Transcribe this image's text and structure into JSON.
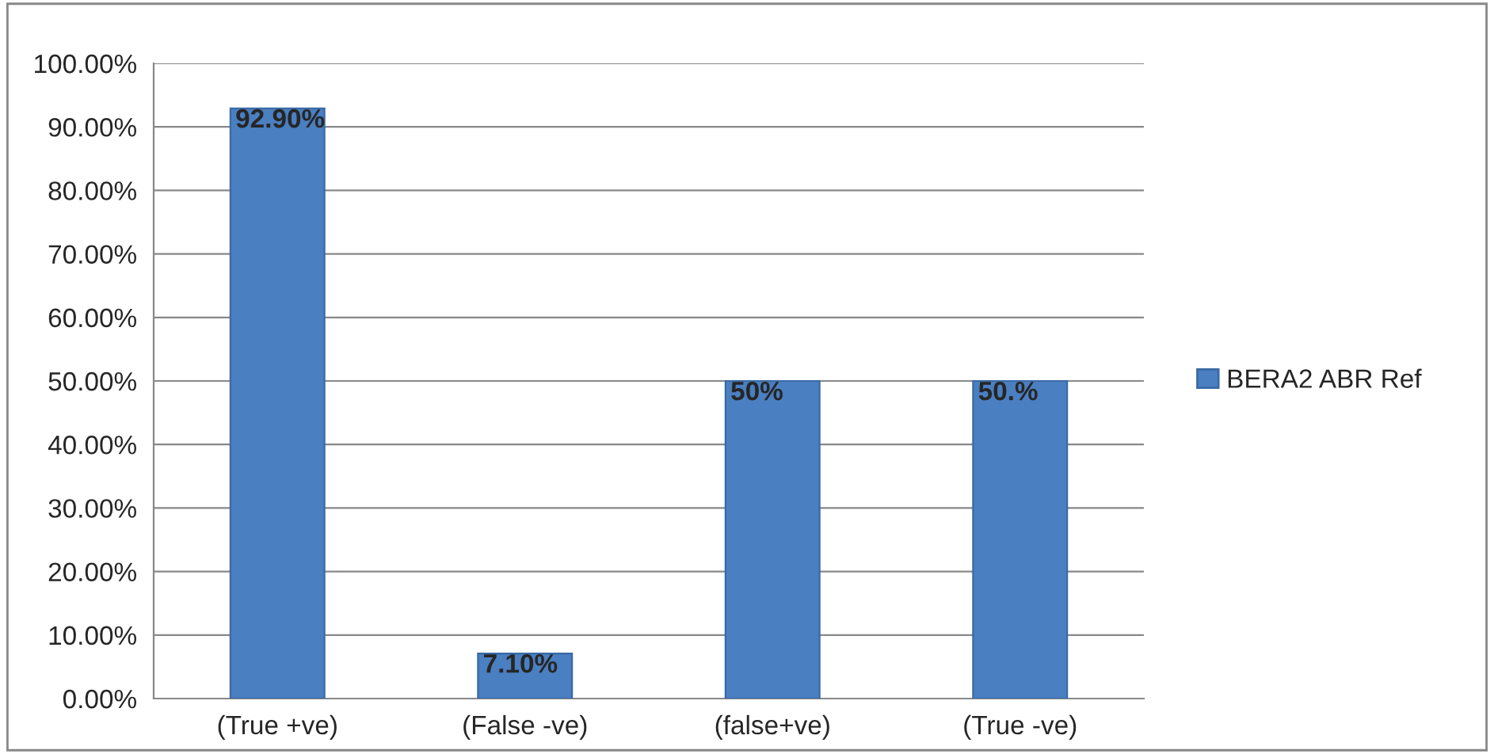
{
  "chart_data": {
    "type": "bar",
    "categories": [
      "(True +ve)",
      "(False -ve)",
      "(false+ve)",
      "(True -ve)"
    ],
    "series": [
      {
        "name": "BERA2 ABR Ref",
        "color": "#4a7fc1",
        "values": [
          92.9,
          7.1,
          50,
          50
        ]
      }
    ],
    "value_labels": [
      "92.90%",
      "7.10%",
      "50%",
      "50.%"
    ],
    "ylim": [
      0,
      100
    ],
    "yticks": [
      {
        "value": 0,
        "label": "0.00%"
      },
      {
        "value": 10,
        "label": "10.00%"
      },
      {
        "value": 20,
        "label": "20.00%"
      },
      {
        "value": 30,
        "label": "30.00%"
      },
      {
        "value": 40,
        "label": "40.00%"
      },
      {
        "value": 50,
        "label": "50.00%"
      },
      {
        "value": 60,
        "label": "60.00%"
      },
      {
        "value": 70,
        "label": "70.00%"
      },
      {
        "value": 80,
        "label": "80.00%"
      },
      {
        "value": 90,
        "label": "90.00%"
      },
      {
        "value": 100,
        "label": "100.00%"
      }
    ],
    "grid": "y",
    "legend": "right"
  }
}
